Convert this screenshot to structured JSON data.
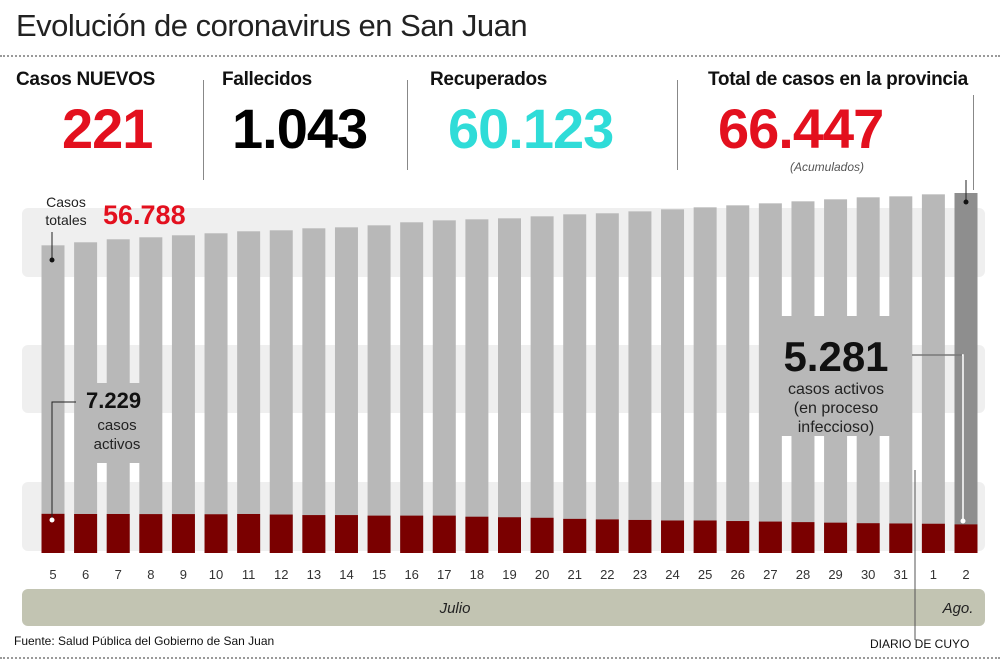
{
  "title": "Evolución de coronavirus en San Juan",
  "stats": [
    {
      "label": "Casos NUEVOS",
      "value": "221",
      "color": "#e3101e"
    },
    {
      "label": "Fallecidos",
      "value": "1.043",
      "color": "#000000"
    },
    {
      "label": "Recuperados",
      "value": "60.123",
      "color": "#2fdcd8"
    },
    {
      "label": "Total de casos en la provincia",
      "value": "66.447",
      "color": "#e3101e",
      "note": "(Acumulados)"
    }
  ],
  "chart_data": {
    "type": "bar",
    "categories": [
      "5",
      "6",
      "7",
      "8",
      "9",
      "10",
      "11",
      "12",
      "13",
      "14",
      "15",
      "16",
      "17",
      "18",
      "19",
      "20",
      "21",
      "22",
      "23",
      "24",
      "25",
      "26",
      "27",
      "28",
      "29",
      "30",
      "31",
      "1",
      "2"
    ],
    "series": [
      {
        "name": "Casos totales",
        "color": "#b8b8b8",
        "highlight_color": "#8e8e8e",
        "values": [
          56788,
          57350,
          57900,
          58270,
          58640,
          59010,
          59380,
          59560,
          59930,
          60110,
          60480,
          61040,
          61400,
          61590,
          61770,
          62140,
          62510,
          62700,
          63060,
          63430,
          63800,
          64170,
          64540,
          64910,
          65280,
          65650,
          65830,
          66200,
          66447
        ]
      },
      {
        "name": "casos activos",
        "color": "#7a0000",
        "values": [
          7229,
          7200,
          7200,
          7180,
          7180,
          7150,
          7200,
          7100,
          7000,
          7000,
          6900,
          6900,
          6900,
          6700,
          6600,
          6500,
          6300,
          6200,
          6100,
          6000,
          6000,
          5900,
          5800,
          5700,
          5600,
          5500,
          5450,
          5400,
          5281
        ]
      }
    ],
    "months": [
      {
        "label": "Julio"
      },
      {
        "label": "Ago."
      }
    ],
    "annotations": {
      "first_total_label": "Casos totales",
      "first_total_value": "56.788",
      "first_active_value": "7.229",
      "first_active_label": "casos activos",
      "last_active_value": "5.281",
      "last_active_label": "casos activos (en proceso infeccioso)",
      "last_active_lines": [
        "casos activos",
        "(en proceso",
        "infeccioso)"
      ]
    },
    "ylim": [
      0,
      66447
    ],
    "grid": false
  },
  "footer": {
    "source": "Fuente: Salud Pública del Gobierno de San Juan",
    "credit": "DIARIO DE CUYO"
  }
}
